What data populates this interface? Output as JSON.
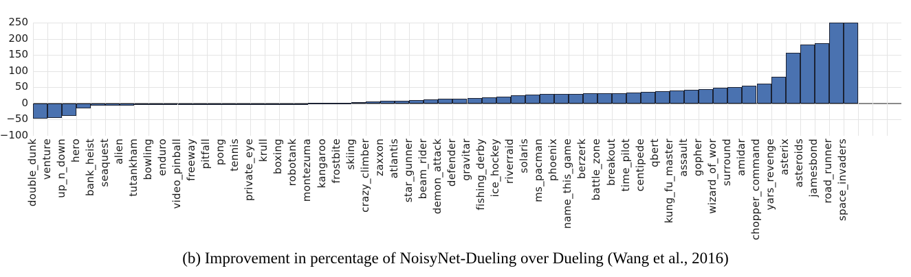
{
  "figure": {
    "caption": "(b) Improvement in percentage of NoisyNet-Dueling over Dueling (Wang et al., 2016)"
  },
  "chart_data": {
    "type": "bar",
    "title": "",
    "xlabel": "",
    "ylabel": "",
    "legend_position": "none",
    "grid": true,
    "ylim": [
      -100,
      250
    ],
    "yticks": [
      -100,
      -50,
      0,
      50,
      100,
      150,
      200,
      250
    ],
    "ytick_labels": [
      "−100",
      "−50",
      "0",
      "50",
      "100",
      "150",
      "200",
      "250"
    ],
    "bars_clipped_at_top": [
      "road_runner",
      "space_invaders"
    ],
    "categories": [
      "double_dunk",
      "venture",
      "up_n_down",
      "hero",
      "bank_heist",
      "seaquest",
      "alien",
      "tutankham",
      "bowling",
      "enduro",
      "video_pinball",
      "freeway",
      "pitfall",
      "pong",
      "tennis",
      "private_eye",
      "krull",
      "boxing",
      "robotank",
      "montezuma",
      "kangaroo",
      "frostbite",
      "skiing",
      "crazy_climber",
      "zaxxon",
      "atlantis",
      "star_gunner",
      "beam_rider",
      "demon_attack",
      "defender",
      "gravitar",
      "fishing_derby",
      "ice_hockey",
      "riverraid",
      "solaris",
      "ms_pacman",
      "phoenix",
      "name_this_game",
      "berzerk",
      "battle_zone",
      "breakout",
      "time_pilot",
      "centipede",
      "qbert",
      "kung_fu_master",
      "assault",
      "gopher",
      "wizard_of_wor",
      "surround",
      "amidar",
      "chopper_command",
      "yars_revenge",
      "asterix",
      "asteroids",
      "jamesbond",
      "road_runner",
      "space_invaders"
    ],
    "values": [
      -47,
      -45,
      -38,
      -15,
      -7,
      -6.5,
      -6,
      -5.5,
      -5,
      -4,
      -2.5,
      -1.2,
      -0.4,
      -0.2,
      -0.1,
      0.1,
      0.3,
      0.4,
      0.5,
      0.8,
      1.5,
      2.2,
      4,
      5.5,
      8.5,
      9,
      10,
      12.5,
      13.5,
      15.5,
      16,
      19,
      21,
      25,
      27.5,
      29,
      29,
      30,
      31,
      32,
      32.5,
      33,
      35,
      38,
      40,
      42,
      44.5,
      48,
      51,
      54,
      61,
      83,
      157,
      182,
      186,
      250,
      250
    ],
    "colors": {
      "bar_fill": "#4a72b0",
      "bar_edge": "#1b2233",
      "grid": "#e4e4e4",
      "zero_line": "#8a8a8a",
      "tick_label": "#1a1a1a",
      "background": "#ffffff"
    }
  }
}
